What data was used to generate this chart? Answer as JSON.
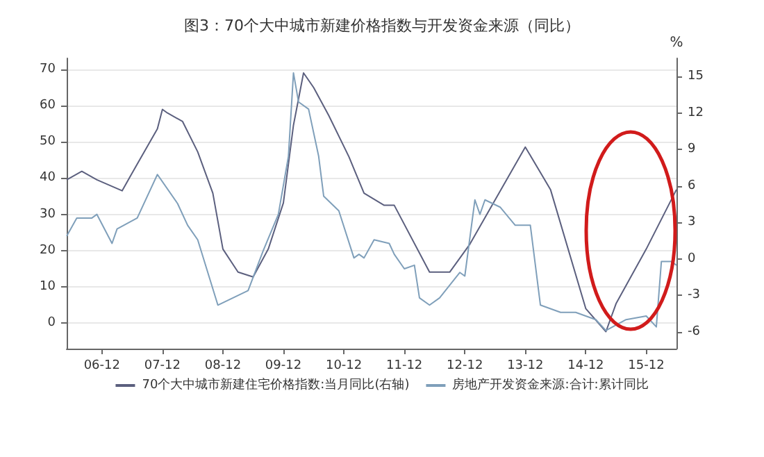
{
  "chart_data": {
    "type": "line",
    "title": "图3：70个大中城市新建价格指数与开发资金来源（同比）",
    "y2label": "%",
    "xlim": [
      "2006-05",
      "2016-06"
    ],
    "xticks": [
      {
        "value": "2006-12",
        "label": "06-12"
      },
      {
        "value": "2007-12",
        "label": "07-12"
      },
      {
        "value": "2008-12",
        "label": "08-12"
      },
      {
        "value": "2009-12",
        "label": "09-12"
      },
      {
        "value": "2010-12",
        "label": "10-12"
      },
      {
        "value": "2011-12",
        "label": "11-12"
      },
      {
        "value": "2012-12",
        "label": "12-12"
      },
      {
        "value": "2013-12",
        "label": "13-12"
      },
      {
        "value": "2014-12",
        "label": "14-12"
      },
      {
        "value": "2015-12",
        "label": "15-12"
      }
    ],
    "ylim": [
      -7,
      73
    ],
    "yticks": [
      0,
      10,
      20,
      30,
      40,
      50,
      60,
      70
    ],
    "y2lim": [
      -7.4,
      16.5
    ],
    "y2ticks": [
      -6,
      -3,
      0,
      3,
      6,
      9,
      12,
      15
    ],
    "grid": "y",
    "legend": "bottom",
    "marker": "none",
    "line_style": "solid",
    "series": [
      {
        "name": "70个大中城市新建住宅价格指数:当月同比(右轴)",
        "color": "#5b5f7e",
        "axis": "y2",
        "x": [
          "2006-05",
          "2006-08",
          "2006-11",
          "2007-04",
          "2007-07",
          "2007-11",
          "2007-12",
          "2008-01",
          "2008-04",
          "2008-07",
          "2008-10",
          "2008-12",
          "2009-03",
          "2009-06",
          "2009-09",
          "2009-12",
          "2010-02",
          "2010-04",
          "2010-06",
          "2010-09",
          "2011-01",
          "2011-04",
          "2011-08",
          "2011-10",
          "2012-05",
          "2012-09",
          "2013-01",
          "2013-12",
          "2014-05",
          "2014-12",
          "2015-04",
          "2015-06",
          "2015-12",
          "2016-06"
        ],
        "values": [
          6.5,
          7.2,
          6.5,
          5.6,
          7.8,
          10.7,
          12.3,
          12.0,
          11.3,
          8.8,
          5.4,
          0.8,
          -1.1,
          -1.5,
          0.8,
          4.6,
          11.0,
          15.3,
          14.1,
          11.8,
          8.4,
          5.4,
          4.4,
          4.4,
          -1.1,
          -1.1,
          1.2,
          9.2,
          5.7,
          -4.1,
          -6.0,
          -3.7,
          0.8,
          5.7
        ]
      },
      {
        "name": "房地产开发资金来源:合计:累计同比",
        "color": "#7f9fba",
        "x": [
          "2006-05",
          "2006-07",
          "2006-10",
          "2006-11",
          "2007-02",
          "2007-03",
          "2007-07",
          "2007-11",
          "2008-03",
          "2008-05",
          "2008-07",
          "2008-11",
          "2009-02",
          "2009-05",
          "2009-08",
          "2009-11",
          "2010-01",
          "2010-02",
          "2010-03",
          "2010-05",
          "2010-07",
          "2010-08",
          "2010-11",
          "2011-02",
          "2011-03",
          "2011-04",
          "2011-06",
          "2011-09",
          "2011-10",
          "2011-12",
          "2012-02",
          "2012-03",
          "2012-05",
          "2012-07",
          "2012-11",
          "2012-12",
          "2013-02",
          "2013-03",
          "2013-04",
          "2013-07",
          "2013-10",
          "2014-01",
          "2014-03",
          "2014-07",
          "2014-10",
          "2015-02",
          "2015-04",
          "2015-08",
          "2015-12",
          "2016-02",
          "2016-03",
          "2016-05",
          "2016-06"
        ],
        "values": [
          24,
          29,
          29,
          30,
          22,
          26,
          29,
          41,
          33,
          27,
          23,
          5,
          7,
          9,
          20,
          30,
          46,
          69,
          61,
          59,
          46,
          35,
          31,
          18,
          19,
          18,
          23,
          22,
          19,
          15,
          16,
          7,
          5,
          7,
          14,
          13,
          34,
          30,
          34,
          32,
          27,
          27,
          5,
          3,
          3,
          1,
          -2,
          1,
          2,
          -1,
          17,
          17,
          16
        ]
      }
    ]
  }
}
